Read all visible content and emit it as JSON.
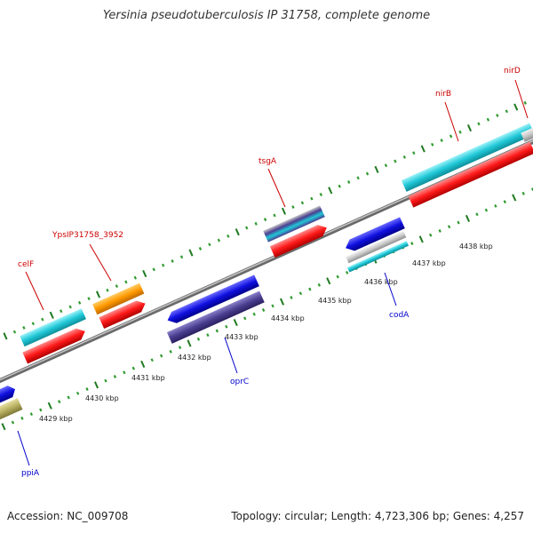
{
  "title": "Yersinia pseudotuberculosis IP 31758, complete genome",
  "footer": {
    "accession": "Accession: NC_009708",
    "topology": "Topology: circular; Length: 4,723,306 bp; Genes: 4,257"
  },
  "colors": {
    "backbone": "#8a8a8a",
    "tick_major": "#1e7a1e",
    "tick_minor": "#2f9a2f",
    "label_forward": "#cc0000",
    "label_reverse": "#0000cc",
    "cds": "#ff0000",
    "gene_cyan": "#20c8d8",
    "gene_orange": "#ff9900",
    "gene_blue": "#1010e0",
    "gene_navy": "#4a3e90",
    "gene_olive": "#b8b060",
    "gene_grey": "#c8c8c8"
  },
  "kbp_labels": [
    "4429 kbp",
    "4430 kbp",
    "4431 kbp",
    "4432 kbp",
    "4433 kbp",
    "4434 kbp",
    "4435 kbp",
    "4436 kbp",
    "4437 kbp",
    "4438 kbp"
  ],
  "gene_labels": {
    "forward": [
      "celF",
      "YpsIP31758_3952",
      "tsgA",
      "nirB",
      "nirD"
    ],
    "reverse": [
      "ppiA",
      "oprC",
      "codA"
    ]
  }
}
